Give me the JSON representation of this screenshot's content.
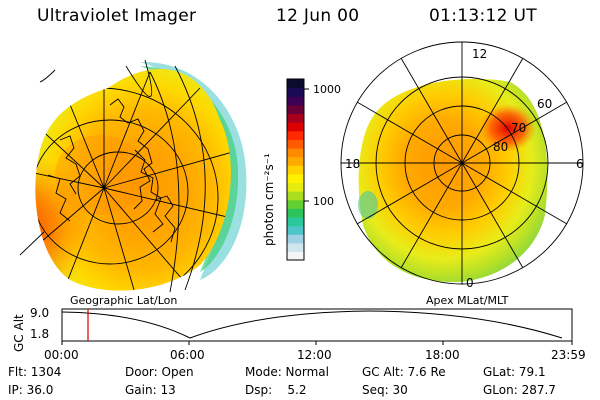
{
  "header": {
    "instrument": "Ultraviolet Imager",
    "date": "12 Jun 00",
    "time": "01:13:12 UT"
  },
  "left_panel": {
    "caption": "Geographic Lat/Lon"
  },
  "right_panel": {
    "caption": "Apex MLat/MLT",
    "mlt_labels": {
      "top": "12",
      "left": "18",
      "right": "6",
      "bottom": "0"
    },
    "lat_labels": [
      "60",
      "70",
      "80"
    ]
  },
  "colorbar": {
    "unit_label": "photon cm⁻²s⁻¹",
    "tick_labels": [
      "1000",
      "100"
    ],
    "colors": [
      "#f5f5f5",
      "#d0e6ef",
      "#9fd0e3",
      "#4cc6c6",
      "#29c89a",
      "#2dc35c",
      "#62d031",
      "#a9df1f",
      "#e5ec10",
      "#fff000",
      "#ffd200",
      "#ffaa00",
      "#ff8a00",
      "#ff5a00",
      "#ff2a00",
      "#dd0000",
      "#a8001c",
      "#6a0038",
      "#3d0052",
      "#1a0a55",
      "#0b0b2e"
    ]
  },
  "timeline": {
    "ylabel": "GC Alt",
    "y_top": "9.0",
    "y_bottom": "1.8",
    "x_ticks": [
      "00:00",
      "06:00",
      "12:00",
      "18:00",
      "23:59"
    ]
  },
  "footer": {
    "flt": "Flt: 1304",
    "door": "Door: Open",
    "mode": "Mode: Normal",
    "gc_alt": "GC Alt: 7.6 Re",
    "glat": "GLat:  79.1",
    "ip": "IP: 36.0",
    "gain": "Gain: 13",
    "dsp": "Dsp:    5.2",
    "seq": "Seq: 30",
    "glon": "GLon: 287.7"
  }
}
